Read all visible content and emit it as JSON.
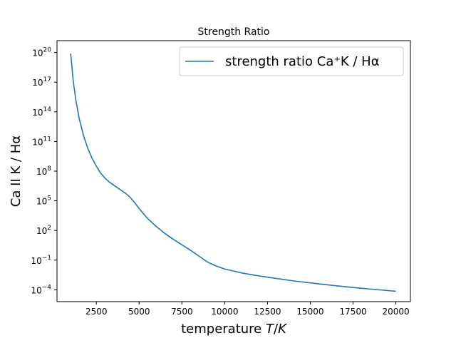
{
  "chart_data": {
    "type": "line",
    "title": "Strength Ratio",
    "xlabel": "temperature T/K",
    "ylabel": "Ca II K / Hα",
    "xlim": [
      200,
      20850
    ],
    "ylim": [
      -5.2,
      21.2
    ],
    "yscale": "log",
    "grid": false,
    "legend_position": "top-right",
    "line_color": "#1f77b4",
    "x_ticks": [
      2500,
      5000,
      7500,
      10000,
      12500,
      15000,
      17500,
      20000
    ],
    "x_tick_labels": [
      "2500",
      "5000",
      "7500",
      "10000",
      "12500",
      "15000",
      "17500",
      "20000"
    ],
    "y_ticks": [
      -4,
      -1,
      2,
      5,
      8,
      11,
      14,
      17,
      20
    ],
    "y_tick_labels": [
      "10",
      "10",
      "10",
      "10",
      "10",
      "10",
      "10",
      "10",
      "10"
    ],
    "y_tick_exponents": [
      "−4",
      "−1",
      "2",
      "5",
      "8",
      "11",
      "14",
      "17",
      "20"
    ],
    "series": [
      {
        "name": "strength ratio Ca⁺K / Hα",
        "x": [
          1000,
          1150,
          1300,
          1500,
          1750,
          2000,
          2250,
          2500,
          2750,
          3000,
          3250,
          3500,
          3750,
          4000,
          4250,
          4500,
          4750,
          5000,
          5500,
          6000,
          6500,
          7000,
          7500,
          8000,
          8500,
          9000,
          9500,
          10000,
          10500,
          11000,
          12000,
          13000,
          14000,
          15000,
          16000,
          17000,
          18000,
          19000,
          20000
        ],
        "y_log10": [
          19.9,
          17.1,
          15.2,
          13.3,
          11.6,
          10.3,
          9.3,
          8.5,
          7.8,
          7.3,
          6.9,
          6.6,
          6.3,
          6.0,
          5.7,
          5.3,
          4.8,
          4.2,
          3.2,
          2.4,
          1.7,
          1.1,
          0.55,
          0.0,
          -0.6,
          -1.2,
          -1.6,
          -1.9,
          -2.1,
          -2.3,
          -2.6,
          -2.85,
          -3.1,
          -3.3,
          -3.5,
          -3.68,
          -3.85,
          -4.0,
          -4.15
        ]
      }
    ]
  }
}
